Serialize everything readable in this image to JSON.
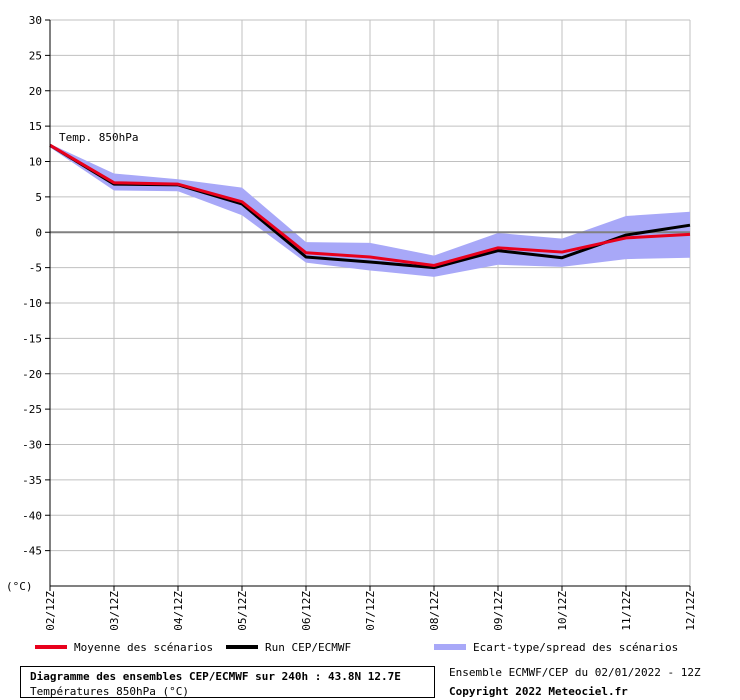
{
  "chart_data": {
    "type": "line",
    "annotation": "Temp. 850hPa",
    "y_unit_label": "(°C)",
    "ylim": [
      -50,
      30
    ],
    "yticks": [
      30,
      25,
      20,
      15,
      10,
      5,
      0,
      -5,
      -10,
      -15,
      -20,
      -25,
      -30,
      -35,
      -40,
      -45
    ],
    "grid": true,
    "categories": [
      "02/12Z",
      "03/12Z",
      "04/12Z",
      "05/12Z",
      "06/12Z",
      "07/12Z",
      "08/12Z",
      "09/12Z",
      "10/12Z",
      "11/12Z",
      "12/12Z"
    ],
    "series": [
      {
        "name": "Moyenne des scénarios",
        "color": "#e8001c",
        "values": [
          12.3,
          7.0,
          6.8,
          4.3,
          -2.9,
          -3.5,
          -4.7,
          -2.2,
          -2.8,
          -0.8,
          -0.3
        ]
      },
      {
        "name": "Run CEP/ECMWF",
        "color": "#000000",
        "values": [
          12.3,
          6.8,
          6.7,
          4.0,
          -3.5,
          -4.2,
          -5.0,
          -2.6,
          -3.6,
          -0.4,
          1.0
        ]
      }
    ],
    "spread": {
      "name": "Ecart-type/spread des scénarios",
      "color": "#a8a8f8",
      "upper": [
        12.5,
        8.3,
        7.5,
        6.3,
        -1.4,
        -1.5,
        -3.3,
        -0.1,
        -0.9,
        2.3,
        2.9
      ],
      "lower": [
        12.0,
        5.9,
        5.8,
        2.4,
        -4.3,
        -5.4,
        -6.3,
        -4.6,
        -4.9,
        -3.8,
        -3.6
      ]
    }
  },
  "footer": {
    "title": "Diagramme des ensembles CEP/ECMWF sur 240h : 43.8N 12.7E",
    "subtitle": "Températures 850hPa (°C)",
    "run_info": "Ensemble ECMWF/CEP du 02/01/2022 - 12Z",
    "copyright": "Copyright 2022 Meteociel.fr"
  }
}
